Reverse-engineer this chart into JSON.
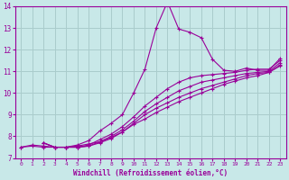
{
  "xlabel": "Windchill (Refroidissement éolien,°C)",
  "bg_color": "#c8e8e8",
  "line_color": "#990099",
  "grid_color": "#aacccc",
  "xlim": [
    -0.5,
    23.5
  ],
  "ylim": [
    7.0,
    14.0
  ],
  "xticks": [
    0,
    1,
    2,
    3,
    4,
    5,
    6,
    7,
    8,
    9,
    10,
    11,
    12,
    13,
    14,
    15,
    16,
    17,
    18,
    19,
    20,
    21,
    22,
    23
  ],
  "yticks": [
    7,
    8,
    9,
    10,
    11,
    12,
    13,
    14
  ],
  "series": [
    {
      "x": [
        0,
        1,
        2,
        3,
        4,
        5,
        6,
        7,
        8,
        9,
        10,
        11,
        12,
        13,
        14,
        15,
        16,
        17,
        18,
        19,
        20,
        21,
        22,
        23
      ],
      "y": [
        7.5,
        7.6,
        7.55,
        7.5,
        7.5,
        7.6,
        7.8,
        8.25,
        8.6,
        9.0,
        10.0,
        11.1,
        13.0,
        14.2,
        12.95,
        12.8,
        12.55,
        11.55,
        11.05,
        11.0,
        11.15,
        11.05,
        11.05,
        11.6
      ]
    },
    {
      "x": [
        2,
        3,
        4,
        5,
        6,
        7,
        8,
        9,
        10,
        11,
        12,
        13,
        14,
        15,
        16,
        17,
        18,
        19,
        20,
        21,
        22,
        23
      ],
      "y": [
        7.7,
        7.5,
        7.5,
        7.5,
        7.6,
        7.85,
        8.1,
        8.45,
        8.9,
        9.4,
        9.8,
        10.2,
        10.5,
        10.7,
        10.8,
        10.85,
        10.9,
        10.95,
        11.05,
        11.1,
        11.1,
        11.5
      ]
    },
    {
      "x": [
        2,
        3,
        4,
        5,
        6,
        7,
        8,
        9,
        10,
        11,
        12,
        13,
        14,
        15,
        16,
        17,
        18,
        19,
        20,
        21,
        22,
        23
      ],
      "y": [
        7.7,
        7.5,
        7.5,
        7.5,
        7.55,
        7.75,
        8.0,
        8.3,
        8.7,
        9.15,
        9.5,
        9.8,
        10.1,
        10.3,
        10.5,
        10.6,
        10.7,
        10.8,
        10.9,
        10.95,
        11.0,
        11.4
      ]
    },
    {
      "x": [
        2,
        3,
        4,
        5,
        6,
        7,
        8,
        9,
        10,
        11,
        12,
        13,
        14,
        15,
        16,
        17,
        18,
        19,
        20,
        21,
        22,
        23
      ],
      "y": [
        7.7,
        7.5,
        7.5,
        7.5,
        7.55,
        7.7,
        7.9,
        8.2,
        8.6,
        9.0,
        9.3,
        9.55,
        9.8,
        10.0,
        10.2,
        10.35,
        10.5,
        10.65,
        10.8,
        10.9,
        10.95,
        11.3
      ]
    },
    {
      "x": [
        0,
        1,
        2,
        3,
        4,
        5,
        6,
        7,
        8,
        9,
        10,
        11,
        12,
        13,
        14,
        15,
        16,
        17,
        18,
        19,
        20,
        21,
        22,
        23
      ],
      "y": [
        7.5,
        7.55,
        7.5,
        7.5,
        7.5,
        7.55,
        7.65,
        7.75,
        7.95,
        8.2,
        8.55,
        8.8,
        9.1,
        9.35,
        9.6,
        9.8,
        10.0,
        10.2,
        10.4,
        10.55,
        10.7,
        10.8,
        10.95,
        11.25
      ]
    }
  ]
}
